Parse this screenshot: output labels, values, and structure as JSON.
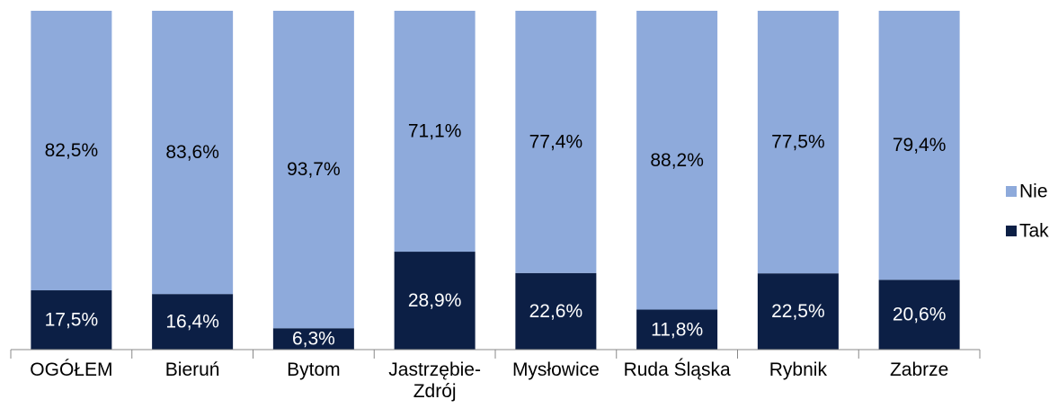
{
  "chart_data": {
    "type": "stacked_bar",
    "categories": [
      "OGÓŁEM",
      "Bieruń",
      "Bytom",
      "Jastrzębie-Zdrój",
      "Mysłowice",
      "Ruda Śląska",
      "Rybnik",
      "Zabrze"
    ],
    "series": [
      {
        "name": "Tak",
        "color": "#0c1f45",
        "values": [
          17.5,
          16.4,
          6.3,
          28.9,
          22.6,
          11.8,
          22.5,
          20.6
        ],
        "value_labels": [
          "17,5%",
          "16,4%",
          "6,3%",
          "28,9%",
          "22,6%",
          "11,8%",
          "22,5%",
          "20,6%"
        ]
      },
      {
        "name": "Nie",
        "color": "#8eaadb",
        "values": [
          82.5,
          83.6,
          93.7,
          71.1,
          77.4,
          88.2,
          77.5,
          79.4
        ],
        "value_labels": [
          "82,5%",
          "83,6%",
          "93,7%",
          "71,1%",
          "77,4%",
          "88,2%",
          "77,5%",
          "79,4%"
        ]
      }
    ],
    "ylim": [
      0,
      100
    ],
    "legend": "right"
  }
}
